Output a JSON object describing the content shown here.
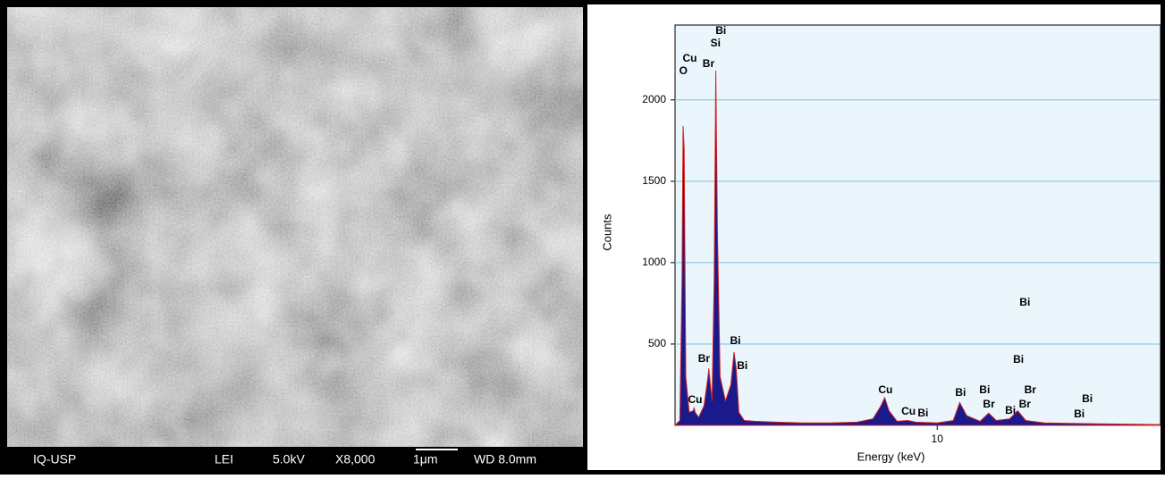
{
  "micrograph": {
    "labels": [
      "IQ-USP",
      "LEI",
      "5.0kV",
      "X8,000",
      "1μm",
      "WD 8.0mm"
    ]
  },
  "chart_data": {
    "type": "area",
    "xlabel": "Energy (keV)",
    "ylabel": "Counts",
    "xlim": [
      0.22,
      18.33
    ],
    "ylim": [
      0,
      2460
    ],
    "xticks": [
      10
    ],
    "yticks": [
      500,
      1000,
      1500,
      2000
    ],
    "grid": true,
    "x": [
      0.22,
      0.4,
      0.48,
      0.52,
      0.56,
      0.62,
      0.75,
      0.9,
      0.93,
      0.97,
      1.1,
      1.3,
      1.45,
      1.48,
      1.52,
      1.6,
      1.68,
      1.74,
      1.8,
      1.9,
      2.1,
      2.3,
      2.42,
      2.5,
      2.6,
      2.8,
      3.2,
      4,
      5,
      6,
      7,
      7.6,
      7.9,
      8.04,
      8.2,
      8.5,
      8.9,
      9.2,
      10,
      10.6,
      10.84,
      11.1,
      11.6,
      11.92,
      12.2,
      12.7,
      13.0,
      13.3,
      14,
      16,
      18.3
    ],
    "series": [
      {
        "color": "#1a1a8c",
        "values": [
          0,
          30,
          900,
          1840,
          1700,
          300,
          80,
          90,
          110,
          80,
          50,
          120,
          300,
          350,
          280,
          150,
          900,
          2180,
          1200,
          300,
          150,
          250,
          450,
          350,
          80,
          30,
          25,
          20,
          15,
          15,
          20,
          40,
          120,
          170,
          90,
          25,
          30,
          20,
          15,
          30,
          140,
          60,
          25,
          75,
          30,
          40,
          90,
          30,
          15,
          10,
          5
        ]
      }
    ],
    "annotations": [
      {
        "text": "O",
        "x": 0.53,
        "y": 2176
      },
      {
        "text": "Cu",
        "x": 0.77,
        "y": 2253
      },
      {
        "text": "Br",
        "x": 1.47,
        "y": 2220
      },
      {
        "text": "Si",
        "x": 1.73,
        "y": 2346
      },
      {
        "text": "Bi",
        "x": 1.93,
        "y": 2423
      },
      {
        "text": "Bi",
        "x": 2.47,
        "y": 516
      },
      {
        "text": "Bi",
        "x": 2.73,
        "y": 363
      },
      {
        "text": "Br",
        "x": 1.3,
        "y": 406
      },
      {
        "text": "Cu",
        "x": 0.97,
        "y": 154
      },
      {
        "text": "Cu",
        "x": 8.07,
        "y": 214
      },
      {
        "text": "Cu",
        "x": 8.93,
        "y": 82
      },
      {
        "text": "Bi",
        "x": 9.47,
        "y": 71
      },
      {
        "text": "Bi",
        "x": 10.87,
        "y": 198
      },
      {
        "text": "Bi",
        "x": 11.77,
        "y": 214
      },
      {
        "text": "Br",
        "x": 11.93,
        "y": 126
      },
      {
        "text": "Br",
        "x": 13.47,
        "y": 214
      },
      {
        "text": "Bi",
        "x": 12.73,
        "y": 88
      },
      {
        "text": "Br",
        "x": 13.27,
        "y": 126
      },
      {
        "text": "Bi",
        "x": 15.3,
        "y": 66
      },
      {
        "text": "Bi",
        "x": 15.6,
        "y": 159
      },
      {
        "text": "Bi",
        "x": 13.03,
        "y": 401
      },
      {
        "text": "Bi",
        "x": 13.27,
        "y": 753
      }
    ]
  }
}
